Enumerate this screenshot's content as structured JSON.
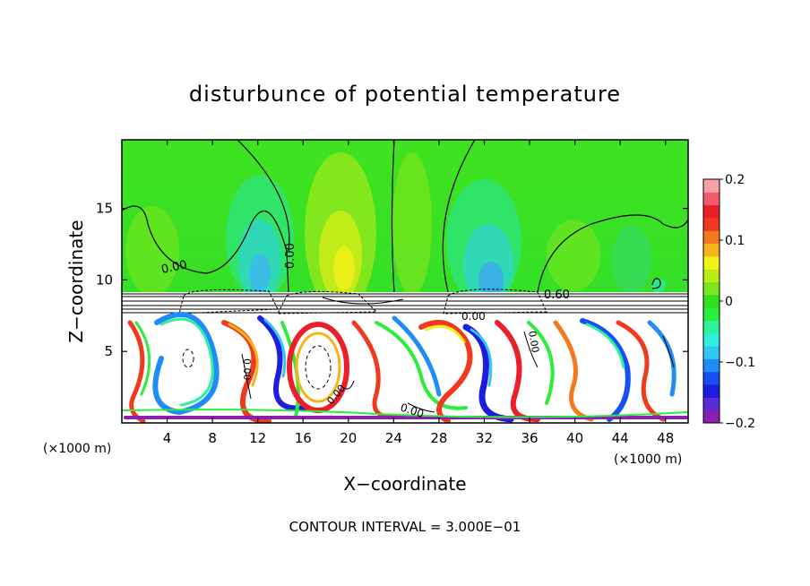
{
  "chart_data": {
    "type": "heatmap",
    "title": "disturbunce of potential temperature",
    "xlabel": "X−coordinate",
    "ylabel": "Z−coordinate",
    "x_unit_left": "(×1000 m)",
    "x_unit_right": "(×1000 m)",
    "x_ticks": [
      "4",
      "8",
      "12",
      "16",
      "20",
      "24",
      "28",
      "32",
      "36",
      "40",
      "44",
      "48"
    ],
    "y_ticks": [
      "5",
      "10",
      "15"
    ],
    "xlim": [
      0,
      50
    ],
    "ylim": [
      0,
      19.8
    ],
    "colorbar": {
      "ticks": [
        "0.2",
        "0.1",
        "0",
        "−0.1",
        "−0.2"
      ],
      "range": [
        -0.2,
        0.2
      ],
      "colors": [
        "#8a1fb0",
        "#5a2bd6",
        "#1d1de0",
        "#1450f2",
        "#1f8cf7",
        "#30c7f2",
        "#2ff0da",
        "#2ef29a",
        "#2ded3c",
        "#33e01f",
        "#7ce61c",
        "#b8ed18",
        "#f2f21a",
        "#f5b41a",
        "#f5781e",
        "#f03a1e",
        "#ea1f2a",
        "#f25a6e",
        "#f7a0a8"
      ]
    },
    "contour_labels": [
      "0.00",
      "0.00",
      "0.00",
      "0.60",
      "0.00",
      "0.00",
      "0.00",
      "0.00"
    ],
    "contour_interval": "CONTOUR INTERVAL = 3.000E−01",
    "grid": false
  }
}
